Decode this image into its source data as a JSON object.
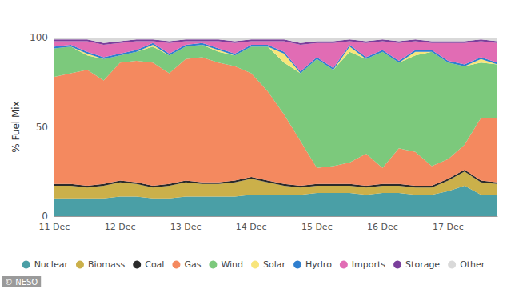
{
  "chart_data": {
    "type": "area",
    "stacked": true,
    "y_label": "% Fuel Mix",
    "annotation": "© NESO",
    "legend": "bottom",
    "grid": false,
    "categories": [
      "11 Dec",
      null,
      null,
      null,
      "12 Dec",
      null,
      null,
      null,
      "13 Dec",
      null,
      null,
      null,
      "14 Dec",
      null,
      null,
      null,
      "15 Dec",
      null,
      null,
      null,
      "16 Dec",
      null,
      null,
      null,
      "17 Dec",
      null,
      null,
      null
    ],
    "ylim": [
      0,
      100
    ],
    "yticks": [
      0,
      50,
      100
    ],
    "series": [
      {
        "name": "Nuclear",
        "color": "#4a9fa6",
        "values": [
          10,
          10,
          10,
          10,
          11,
          11,
          10,
          10,
          11,
          11,
          11,
          11,
          12,
          12,
          12,
          12,
          13,
          13,
          13,
          12,
          13,
          13,
          12,
          12,
          14,
          17,
          12,
          12
        ]
      },
      {
        "name": "Biomass",
        "color": "#cbb04a",
        "values": [
          7,
          7,
          6,
          7,
          8,
          7,
          6,
          7,
          8,
          7,
          7,
          8,
          9,
          7,
          5,
          4,
          4,
          4,
          4,
          4,
          4,
          4,
          4,
          4,
          6,
          8,
          7,
          6
        ]
      },
      {
        "name": "Coal",
        "color": "#2b2b2b",
        "values": [
          1,
          1,
          1,
          1,
          1,
          1,
          1,
          1,
          1,
          1,
          1,
          1,
          1,
          1,
          1,
          1,
          1,
          1,
          1,
          1,
          1,
          1,
          1,
          1,
          1,
          1,
          1,
          1
        ]
      },
      {
        "name": "Gas",
        "color": "#f4895f",
        "values": [
          60,
          62,
          65,
          58,
          66,
          68,
          69,
          62,
          68,
          70,
          67,
          64,
          58,
          50,
          39,
          25,
          9,
          10,
          12,
          18,
          9,
          20,
          19,
          11,
          11,
          14,
          35,
          36
        ]
      },
      {
        "name": "Wind",
        "color": "#7cc97c",
        "values": [
          16,
          15,
          8,
          12,
          4,
          5,
          9,
          10,
          7,
          7,
          6,
          6,
          15,
          25,
          29,
          38,
          61,
          54,
          62,
          53,
          65,
          48,
          54,
          64,
          54,
          44,
          31,
          30
        ]
      },
      {
        "name": "Solar",
        "color": "#f8e57a",
        "values": [
          0,
          0,
          1,
          0,
          0,
          0,
          1,
          0,
          0,
          0,
          1,
          0,
          0,
          0,
          5,
          0,
          0,
          0,
          3,
          0,
          0,
          0,
          2,
          0,
          0,
          0,
          2,
          0
        ]
      },
      {
        "name": "Hydro",
        "color": "#2f7fcf",
        "values": [
          1,
          1,
          1,
          1,
          1,
          1,
          1,
          1,
          1,
          1,
          1,
          1,
          1,
          1,
          1,
          1,
          1,
          1,
          1,
          1,
          1,
          1,
          1,
          1,
          1,
          1,
          1,
          1
        ]
      },
      {
        "name": "Imports",
        "color": "#e16cb4",
        "values": [
          3,
          2,
          6,
          7,
          6,
          5,
          1,
          6,
          2,
          1,
          4,
          6,
          2,
          2,
          6,
          15,
          8,
          14,
          2,
          8,
          5,
          10,
          5,
          4,
          10,
          12,
          9,
          11
        ]
      },
      {
        "name": "Storage",
        "color": "#7b3f9c",
        "values": [
          1,
          1,
          1,
          1,
          1,
          1,
          1,
          1,
          1,
          1,
          1,
          1,
          1,
          1,
          1,
          1,
          1,
          1,
          1,
          1,
          1,
          1,
          1,
          1,
          1,
          1,
          1,
          1
        ]
      },
      {
        "name": "Other",
        "color": "#d9d9d9",
        "values": [
          1,
          1,
          1,
          3,
          2,
          1,
          1,
          2,
          1,
          1,
          1,
          2,
          1,
          1,
          1,
          3,
          2,
          2,
          1,
          2,
          1,
          2,
          1,
          2,
          2,
          2,
          1,
          2
        ]
      }
    ]
  }
}
